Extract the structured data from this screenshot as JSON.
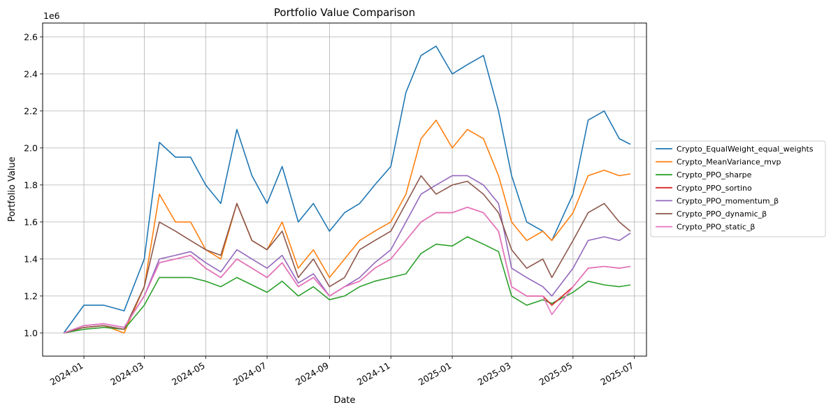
{
  "chart_data": {
    "type": "line",
    "title": "Portfolio Value Comparison",
    "xlabel": "Date",
    "ylabel": "Portfolio Value",
    "y_multiplier_label": "1e6",
    "ylim": [
      0.875,
      2.675
    ],
    "xlim": [
      "2023-11-21",
      "2025-07-13"
    ],
    "grid": true,
    "legend_position": "outside right, center",
    "x_ticks": [
      {
        "date": "2024-01-01",
        "label": "2024-01"
      },
      {
        "date": "2024-03-01",
        "label": "2024-03"
      },
      {
        "date": "2024-05-01",
        "label": "2024-05"
      },
      {
        "date": "2024-07-01",
        "label": "2024-07"
      },
      {
        "date": "2024-09-01",
        "label": "2024-09"
      },
      {
        "date": "2024-11-01",
        "label": "2024-11"
      },
      {
        "date": "2025-01-01",
        "label": "2025-01"
      },
      {
        "date": "2025-03-01",
        "label": "2025-03"
      },
      {
        "date": "2025-05-01",
        "label": "2025-05"
      },
      {
        "date": "2025-07-01",
        "label": "2025-07"
      }
    ],
    "y_ticks": [
      {
        "value": 1.0,
        "label": "1.0"
      },
      {
        "value": 1.2,
        "label": "1.2"
      },
      {
        "value": 1.4,
        "label": "1.4"
      },
      {
        "value": 1.6,
        "label": "1.6"
      },
      {
        "value": 1.8,
        "label": "1.8"
      },
      {
        "value": 2.0,
        "label": "2.0"
      },
      {
        "value": 2.2,
        "label": "2.2"
      },
      {
        "value": 2.4,
        "label": "2.4"
      },
      {
        "value": 2.6,
        "label": "2.6"
      }
    ],
    "x": [
      "2023-12-12",
      "2024-01-01",
      "2024-01-21",
      "2024-02-10",
      "2024-03-01",
      "2024-03-16",
      "2024-04-01",
      "2024-04-16",
      "2024-05-01",
      "2024-05-16",
      "2024-06-01",
      "2024-06-16",
      "2024-07-01",
      "2024-07-16",
      "2024-08-01",
      "2024-08-16",
      "2024-09-01",
      "2024-09-16",
      "2024-10-01",
      "2024-10-16",
      "2024-11-01",
      "2024-11-16",
      "2024-12-01",
      "2024-12-16",
      "2025-01-01",
      "2025-01-16",
      "2025-02-01",
      "2025-02-16",
      "2025-03-01",
      "2025-03-16",
      "2025-04-01",
      "2025-04-10",
      "2025-05-01",
      "2025-05-16",
      "2025-06-01",
      "2025-06-16",
      "2025-06-27"
    ],
    "series": [
      {
        "name": "Crypto_EqualWeight_equal_weights",
        "color": "#1f77b4",
        "values": [
          1.0,
          1.15,
          1.15,
          1.12,
          1.4,
          2.03,
          1.95,
          1.95,
          1.8,
          1.7,
          2.1,
          1.85,
          1.7,
          1.9,
          1.6,
          1.7,
          1.55,
          1.65,
          1.7,
          1.8,
          1.9,
          2.3,
          2.5,
          2.55,
          2.4,
          2.45,
          2.5,
          2.2,
          1.85,
          1.6,
          1.55,
          1.5,
          1.75,
          2.15,
          2.2,
          2.05,
          2.02
        ]
      },
      {
        "name": "Crypto_MeanVariance_mvp",
        "color": "#ff7f0e",
        "values": [
          1.0,
          1.03,
          1.04,
          1.0,
          1.25,
          1.75,
          1.6,
          1.6,
          1.45,
          1.4,
          1.7,
          1.5,
          1.45,
          1.6,
          1.35,
          1.45,
          1.3,
          1.4,
          1.5,
          1.55,
          1.6,
          1.75,
          2.05,
          2.15,
          2.0,
          2.1,
          2.05,
          1.85,
          1.6,
          1.5,
          1.55,
          1.5,
          1.65,
          1.85,
          1.88,
          1.85,
          1.86
        ]
      },
      {
        "name": "Crypto_PPO_sharpe",
        "color": "#2ca02c",
        "values": [
          1.0,
          1.02,
          1.03,
          1.02,
          1.15,
          1.3,
          1.3,
          1.3,
          1.28,
          1.25,
          1.3,
          1.26,
          1.22,
          1.28,
          1.2,
          1.25,
          1.18,
          1.2,
          1.25,
          1.28,
          1.3,
          1.32,
          1.43,
          1.48,
          1.47,
          1.52,
          1.48,
          1.44,
          1.2,
          1.15,
          1.18,
          1.16,
          1.22,
          1.28,
          1.26,
          1.25,
          1.26
        ]
      },
      {
        "name": "Crypto_PPO_sortino",
        "color": "#d62728",
        "values": [
          1.0,
          1.04,
          1.05,
          1.03,
          1.2,
          1.38,
          1.4,
          1.42,
          1.35,
          1.3,
          1.4,
          1.35,
          1.3,
          1.38,
          1.25,
          1.3,
          1.2,
          1.25,
          1.28,
          1.35,
          1.4,
          1.5,
          1.6,
          1.65,
          1.65,
          1.68,
          1.65,
          1.55,
          1.25,
          1.2,
          1.2,
          1.15,
          1.25,
          1.35,
          1.36,
          1.35,
          1.36
        ]
      },
      {
        "name": "Crypto_PPO_momentum_β",
        "color": "#9467bd",
        "values": [
          1.0,
          1.04,
          1.05,
          1.03,
          1.2,
          1.4,
          1.42,
          1.44,
          1.38,
          1.33,
          1.45,
          1.4,
          1.35,
          1.42,
          1.27,
          1.32,
          1.2,
          1.25,
          1.3,
          1.38,
          1.45,
          1.6,
          1.75,
          1.8,
          1.85,
          1.85,
          1.8,
          1.7,
          1.35,
          1.3,
          1.25,
          1.2,
          1.35,
          1.5,
          1.52,
          1.5,
          1.54
        ]
      },
      {
        "name": "Crypto_PPO_dynamic_β",
        "color": "#8c564b",
        "values": [
          1.0,
          1.03,
          1.04,
          1.02,
          1.25,
          1.6,
          1.55,
          1.5,
          1.45,
          1.42,
          1.7,
          1.5,
          1.45,
          1.55,
          1.3,
          1.4,
          1.25,
          1.3,
          1.45,
          1.5,
          1.55,
          1.7,
          1.85,
          1.75,
          1.8,
          1.82,
          1.75,
          1.65,
          1.45,
          1.35,
          1.4,
          1.3,
          1.5,
          1.65,
          1.7,
          1.6,
          1.55
        ]
      },
      {
        "name": "Crypto_PPO_static_β",
        "color": "#e377c2",
        "values": [
          1.0,
          1.04,
          1.05,
          1.03,
          1.2,
          1.38,
          1.4,
          1.42,
          1.35,
          1.3,
          1.4,
          1.35,
          1.3,
          1.38,
          1.25,
          1.3,
          1.2,
          1.25,
          1.28,
          1.35,
          1.4,
          1.5,
          1.6,
          1.65,
          1.65,
          1.68,
          1.65,
          1.55,
          1.25,
          1.2,
          1.2,
          1.1,
          1.25,
          1.35,
          1.36,
          1.35,
          1.36
        ]
      }
    ]
  }
}
